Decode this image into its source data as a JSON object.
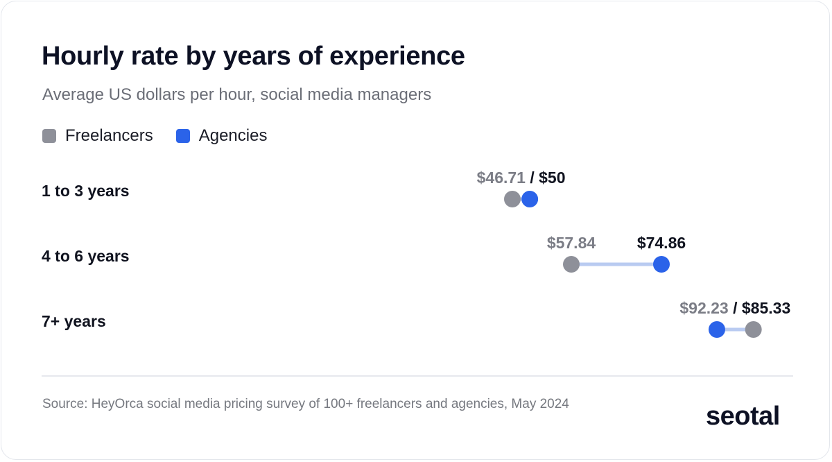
{
  "title": "Hourly rate by years of experience",
  "subtitle": "Average US dollars per hour, social media managers",
  "legend": [
    {
      "label": "Freelancers",
      "color": "#8e9099"
    },
    {
      "label": "Agencies",
      "color": "#2b63e9"
    }
  ],
  "chart_data": {
    "type": "dumbbell",
    "title": "Hourly rate by years of experience",
    "subtitle": "Average US dollars per hour, social media managers",
    "categories": [
      "1 to 3 years",
      "4 to 6 years",
      "7+ years"
    ],
    "series": [
      {
        "name": "Freelancers",
        "color": "#8e9099",
        "values": [
          46.71,
          57.84,
          92.23
        ],
        "labels": [
          "$46.71",
          "$57.84",
          "$92.23"
        ]
      },
      {
        "name": "Agencies",
        "color": "#2b63e9",
        "values": [
          50,
          74.86,
          85.33
        ],
        "labels": [
          "$50",
          "$74.86",
          "$85.33"
        ]
      }
    ],
    "connector_color": "#b9cbf1",
    "grid": false,
    "legend_position": "top-left"
  },
  "source": "Source: HeyOrca social media pricing survey of 100+ freelancers and agencies, May 2024",
  "logo": "seotal"
}
